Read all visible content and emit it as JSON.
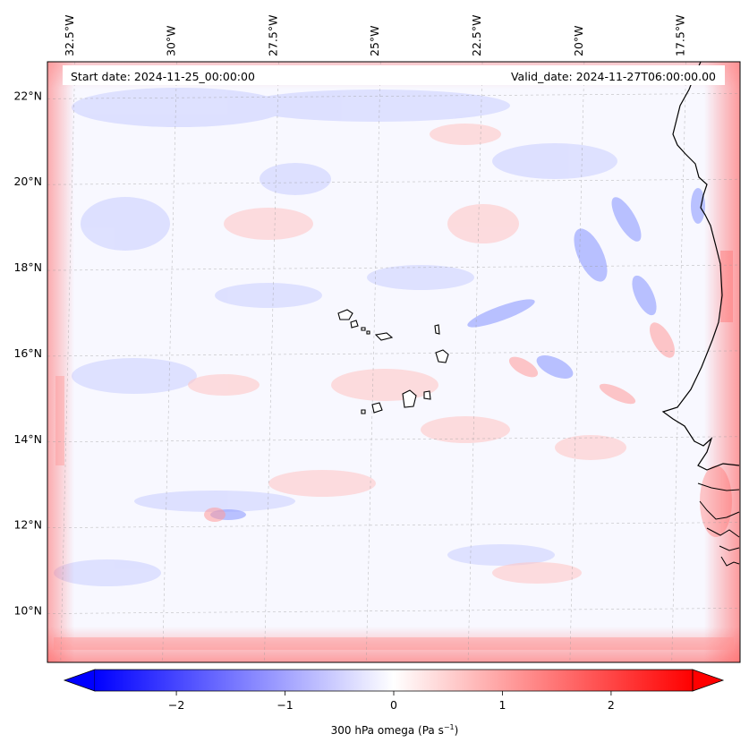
{
  "header": {
    "start_date": "Start date: 2024-11-25_00:00:00",
    "valid_date": "Valid_date: 2024-11-27T06:00:00.00"
  },
  "chart_data": {
    "type": "heatmap",
    "field": "300 hPa omega",
    "lon_range": [
      -33.0,
      -16.0
    ],
    "lat_range": [
      8.8,
      22.8
    ],
    "lon_ticks": [
      {
        "value": -32.5,
        "label": "32.5°W"
      },
      {
        "value": -30.0,
        "label": "30°W"
      },
      {
        "value": -27.5,
        "label": "27.5°W"
      },
      {
        "value": -25.0,
        "label": "25°W"
      },
      {
        "value": -22.5,
        "label": "22.5°W"
      },
      {
        "value": -20.0,
        "label": "20°W"
      },
      {
        "value": -17.5,
        "label": "17.5°W"
      }
    ],
    "lat_ticks": [
      {
        "value": 22,
        "label": "22°N"
      },
      {
        "value": 20,
        "label": "20°N"
      },
      {
        "value": 18,
        "label": "18°N"
      },
      {
        "value": 16,
        "label": "16°N"
      },
      {
        "value": 14,
        "label": "14°N"
      },
      {
        "value": 12,
        "label": "12°N"
      },
      {
        "value": 10,
        "label": "10°N"
      }
    ],
    "colorbar": {
      "cmap": "bwr",
      "vmin": -2.75,
      "vmax": 2.75,
      "extend": "both",
      "ticks": [
        -2,
        -1,
        0,
        1,
        2
      ],
      "tick_labels": [
        "−2",
        "−1",
        "0",
        "1",
        "2"
      ],
      "label_main": "300 hPa omega (Pa s",
      "label_exp": "−1",
      "label_close": ")"
    }
  }
}
